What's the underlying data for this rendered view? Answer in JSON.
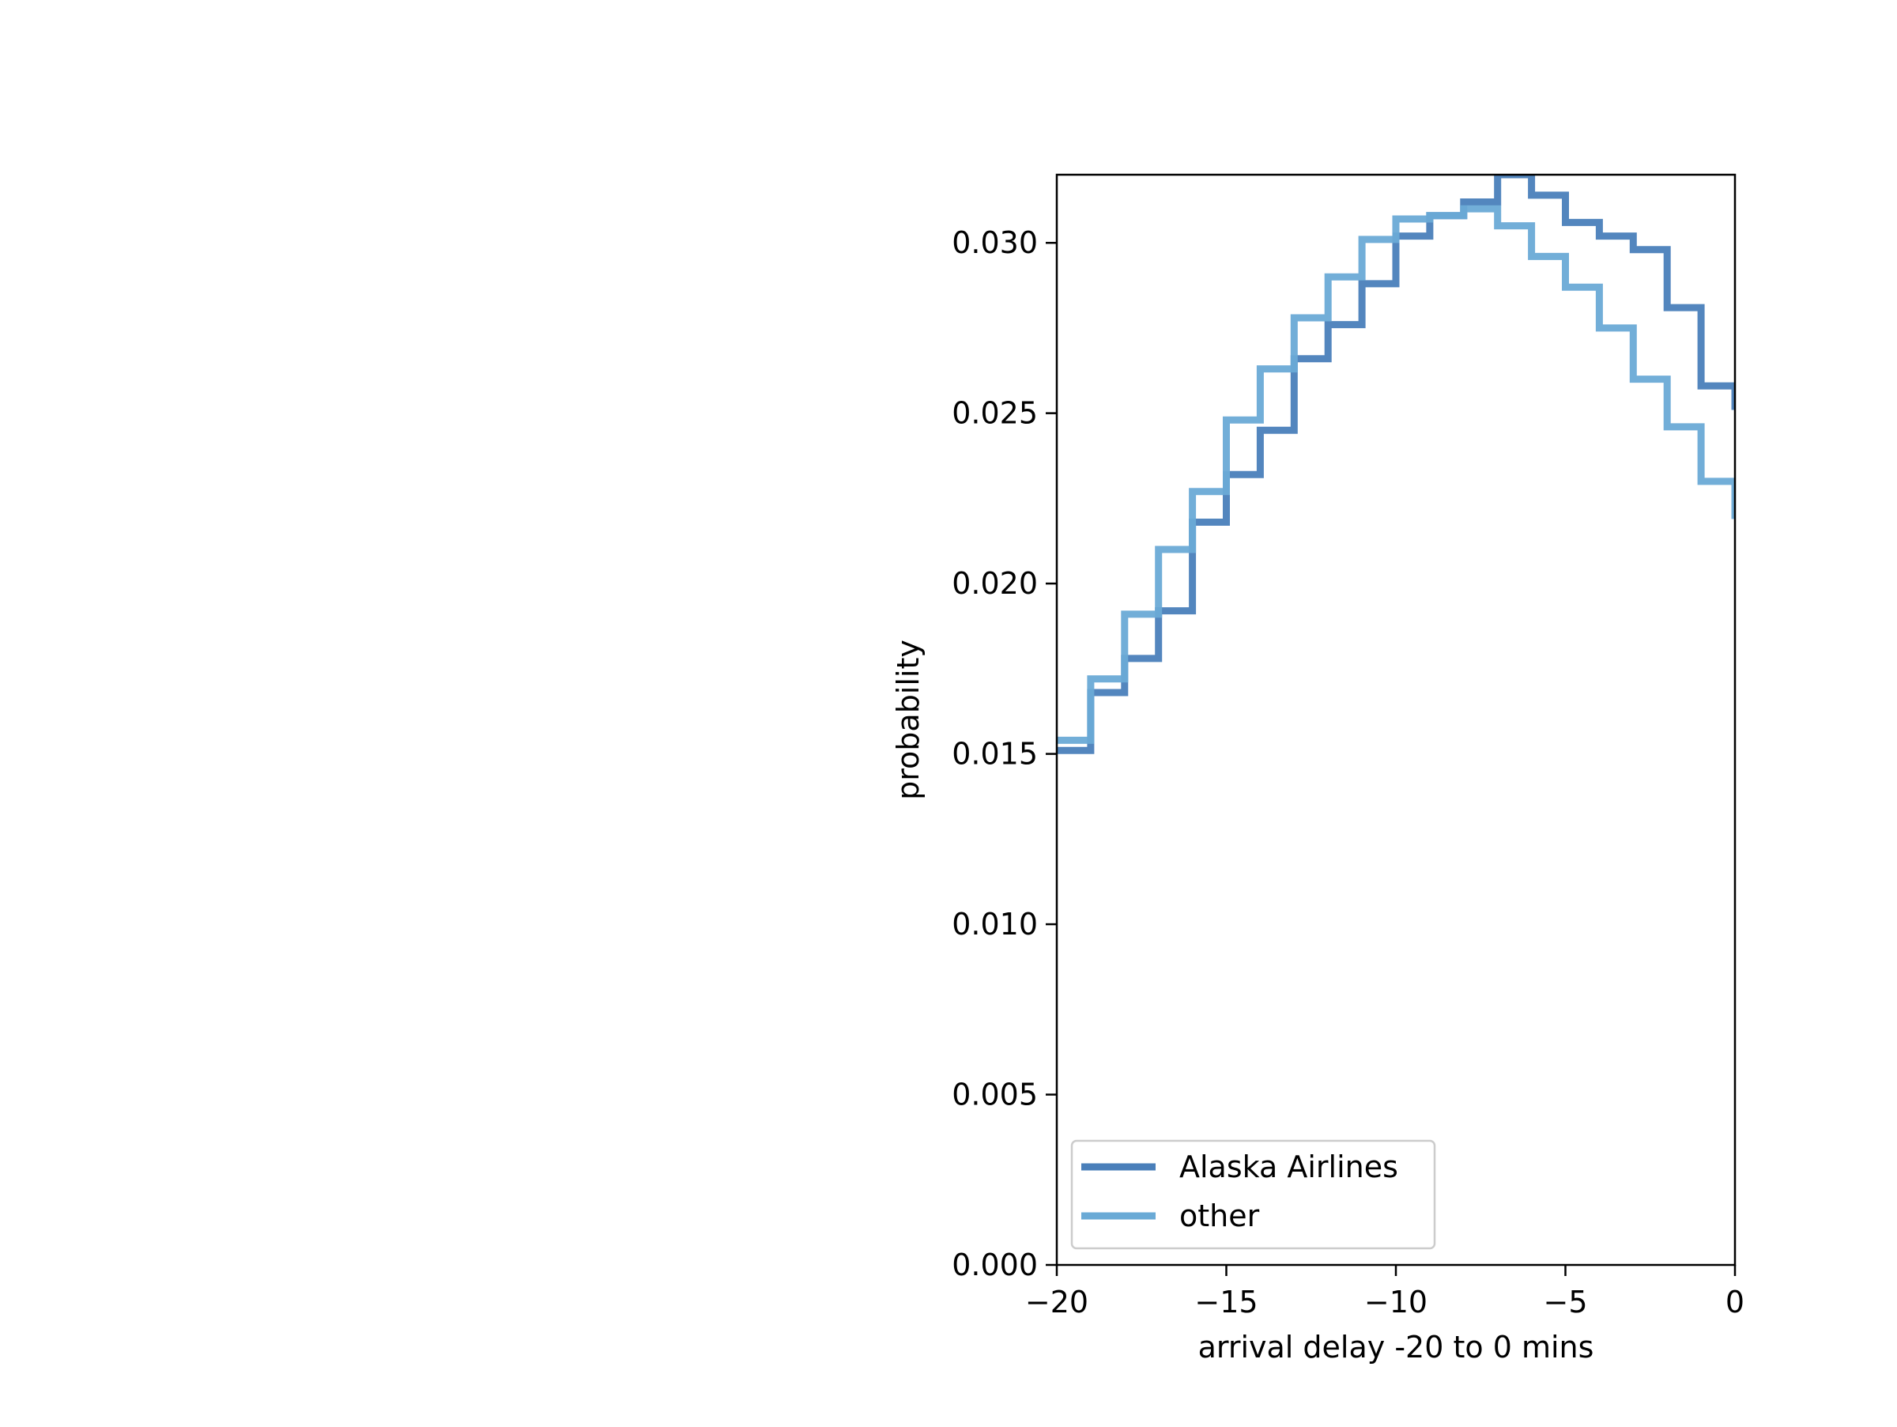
{
  "chart_data": {
    "type": "line",
    "step": "post",
    "xlabel": "arrival delay -20 to 0 mins",
    "ylabel": "probability",
    "xlim": [
      -20,
      0
    ],
    "ylim": [
      0,
      0.032
    ],
    "xticks": [
      -20,
      -15,
      -10,
      -5,
      0
    ],
    "xtick_labels": [
      "−20",
      "−15",
      "−10",
      "−5",
      "0"
    ],
    "yticks": [
      0,
      0.005,
      0.01,
      0.015,
      0.02,
      0.025,
      0.03
    ],
    "ytick_labels": [
      "0.000",
      "0.005",
      "0.010",
      "0.015",
      "0.020",
      "0.025",
      "0.030"
    ],
    "grid": false,
    "legend_position": "lower-left",
    "x": [
      -20,
      -19,
      -18,
      -17,
      -16,
      -15,
      -14,
      -13,
      -12,
      -11,
      -10,
      -9,
      -8,
      -7,
      -6,
      -5,
      -4,
      -3,
      -2,
      -1,
      0
    ],
    "series": [
      {
        "name": "Alaska Airlines",
        "color": "#4a7fba",
        "values": [
          0.0151,
          0.0168,
          0.0178,
          0.0192,
          0.0218,
          0.0232,
          0.0245,
          0.0266,
          0.0276,
          0.0288,
          0.0302,
          0.0308,
          0.0312,
          0.032,
          0.0314,
          0.0306,
          0.0302,
          0.0298,
          0.0281,
          0.0258,
          0.0252
        ]
      },
      {
        "name": "other",
        "color": "#6aaad6",
        "values": [
          0.0154,
          0.0172,
          0.0191,
          0.021,
          0.0227,
          0.0248,
          0.0263,
          0.0278,
          0.029,
          0.0301,
          0.0307,
          0.0308,
          0.031,
          0.0305,
          0.0296,
          0.0287,
          0.0275,
          0.026,
          0.0246,
          0.023,
          0.022
        ]
      }
    ]
  }
}
